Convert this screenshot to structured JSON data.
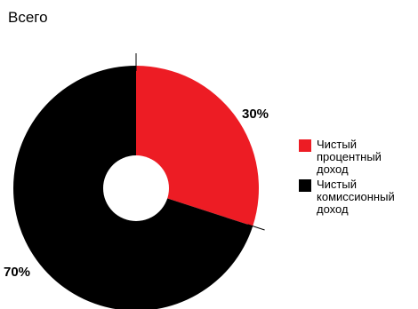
{
  "chart_data": {
    "type": "pie",
    "title": "Всего",
    "donut": true,
    "start_angle_deg": 0,
    "direction": "clockwise",
    "series": [
      {
        "name": "Чистый процентный доход",
        "value": 30,
        "label": "30%",
        "color": "#ED1C24"
      },
      {
        "name": "Чистый комиссионный доход",
        "value": 70,
        "label": "70%",
        "color": "#000000"
      }
    ],
    "legend_position": "right"
  }
}
